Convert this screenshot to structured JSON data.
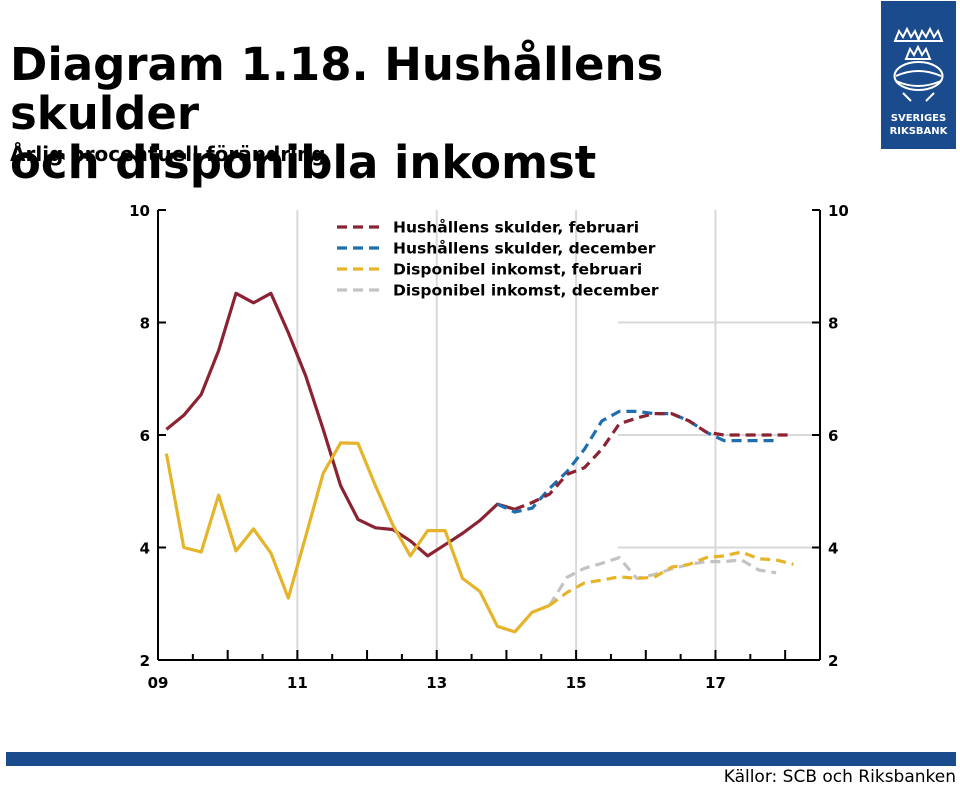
{
  "title_lines": [
    "Diagram 1.18. Hushållens skulder",
    "och disponibla inkomst"
  ],
  "subtitle": "Årlig procentuell förändring",
  "logo": {
    "line1": "SVERIGES",
    "line2": "RIKSBANK",
    "icon": "crown-emblem-icon"
  },
  "sources": "Källor: SCB och Riksbanken",
  "colors": {
    "debt_feb": "#8b2332",
    "debt_dec": "#1f6fb0",
    "income_feb": "#e5b42a",
    "income_dec": "#c3c3c3",
    "grid": "#d9d9d9",
    "brand": "#1a4b8c"
  },
  "chart_data": {
    "type": "line",
    "title": "",
    "xlabel": "",
    "ylabel": "",
    "xlim": [
      2009,
      2018.5
    ],
    "ylim": [
      2,
      10
    ],
    "grid": true,
    "legend_position": "top",
    "y_ticks": [
      "2",
      "4",
      "6",
      "8",
      "10"
    ],
    "x_ticks": [
      {
        "value": 2009,
        "label": "09"
      },
      {
        "value": 2011,
        "label": "11"
      },
      {
        "value": 2013,
        "label": "13"
      },
      {
        "value": 2015,
        "label": "15"
      },
      {
        "value": 2017,
        "label": "17"
      }
    ],
    "legend": [
      {
        "label": "Hushållens skulder, februari",
        "series": "debt_feb"
      },
      {
        "label": "Hushållens skulder, december",
        "series": "debt_dec"
      },
      {
        "label": "Disponibel inkomst, februari",
        "series": "income_feb"
      },
      {
        "label": "Disponibel inkomst, december",
        "series": "income_dec"
      }
    ],
    "series": [
      {
        "key": "debt_hist",
        "color_key": "debt_feb",
        "dashed": false,
        "points": [
          [
            2009.12,
            6.1
          ],
          [
            2009.37,
            6.35
          ],
          [
            2009.62,
            6.72
          ],
          [
            2009.87,
            7.5
          ],
          [
            2010.12,
            8.52
          ],
          [
            2010.37,
            8.35
          ],
          [
            2010.62,
            8.52
          ],
          [
            2010.87,
            7.82
          ],
          [
            2011.12,
            7.05
          ],
          [
            2011.37,
            6.1
          ],
          [
            2011.62,
            5.1
          ],
          [
            2011.87,
            4.5
          ],
          [
            2012.12,
            4.35
          ],
          [
            2012.37,
            4.32
          ],
          [
            2012.62,
            4.12
          ],
          [
            2012.87,
            3.85
          ],
          [
            2013.12,
            4.05
          ],
          [
            2013.37,
            4.25
          ],
          [
            2013.62,
            4.48
          ],
          [
            2013.87,
            4.77
          ],
          [
            2014.12,
            4.68
          ]
        ]
      },
      {
        "key": "debt_feb",
        "color_key": "debt_feb",
        "dashed": true,
        "points": [
          [
            2014.12,
            4.68
          ],
          [
            2014.37,
            4.8
          ],
          [
            2014.62,
            4.95
          ],
          [
            2014.87,
            5.3
          ],
          [
            2015.12,
            5.42
          ],
          [
            2015.37,
            5.75
          ],
          [
            2015.62,
            6.2
          ],
          [
            2015.87,
            6.3
          ],
          [
            2016.12,
            6.38
          ],
          [
            2016.37,
            6.38
          ],
          [
            2016.62,
            6.25
          ],
          [
            2016.87,
            6.05
          ],
          [
            2017.12,
            6.0
          ],
          [
            2017.37,
            6.0
          ],
          [
            2017.62,
            6.0
          ],
          [
            2017.87,
            6.0
          ],
          [
            2018.12,
            6.0
          ]
        ]
      },
      {
        "key": "debt_dec",
        "color_key": "debt_dec",
        "dashed": true,
        "points": [
          [
            2013.87,
            4.77
          ],
          [
            2014.12,
            4.63
          ],
          [
            2014.37,
            4.7
          ],
          [
            2014.62,
            5.05
          ],
          [
            2014.87,
            5.35
          ],
          [
            2015.12,
            5.75
          ],
          [
            2015.37,
            6.25
          ],
          [
            2015.62,
            6.42
          ],
          [
            2015.87,
            6.42
          ],
          [
            2016.12,
            6.38
          ],
          [
            2016.37,
            6.38
          ],
          [
            2016.62,
            6.25
          ],
          [
            2016.87,
            6.05
          ],
          [
            2017.12,
            5.9
          ],
          [
            2017.37,
            5.9
          ],
          [
            2017.62,
            5.9
          ],
          [
            2017.87,
            5.9
          ]
        ]
      },
      {
        "key": "income_hist",
        "color_key": "income_feb",
        "dashed": false,
        "points": [
          [
            2009.12,
            5.67
          ],
          [
            2009.37,
            4.0
          ],
          [
            2009.62,
            3.92
          ],
          [
            2009.87,
            4.93
          ],
          [
            2010.12,
            3.94
          ],
          [
            2010.37,
            4.33
          ],
          [
            2010.62,
            3.9
          ],
          [
            2010.87,
            3.1
          ],
          [
            2011.12,
            4.2
          ],
          [
            2011.37,
            5.32
          ],
          [
            2011.62,
            5.86
          ],
          [
            2011.87,
            5.85
          ],
          [
            2012.12,
            5.1
          ],
          [
            2012.37,
            4.4
          ],
          [
            2012.62,
            3.85
          ],
          [
            2012.87,
            4.3
          ],
          [
            2013.12,
            4.3
          ],
          [
            2013.37,
            3.45
          ],
          [
            2013.62,
            3.22
          ],
          [
            2013.87,
            2.6
          ],
          [
            2014.12,
            2.5
          ],
          [
            2014.37,
            2.85
          ],
          [
            2014.62,
            2.97
          ]
        ]
      },
      {
        "key": "income_dec",
        "color_key": "income_dec",
        "dashed": true,
        "points": [
          [
            2014.62,
            2.97
          ],
          [
            2014.87,
            3.47
          ],
          [
            2015.12,
            3.63
          ],
          [
            2015.37,
            3.72
          ],
          [
            2015.62,
            3.82
          ],
          [
            2015.87,
            3.45
          ],
          [
            2016.12,
            3.52
          ],
          [
            2016.37,
            3.62
          ],
          [
            2016.62,
            3.7
          ],
          [
            2016.87,
            3.75
          ],
          [
            2017.12,
            3.75
          ],
          [
            2017.37,
            3.78
          ],
          [
            2017.62,
            3.6
          ],
          [
            2017.87,
            3.55
          ]
        ]
      },
      {
        "key": "income_feb",
        "color_key": "income_feb",
        "dashed": true,
        "points": [
          [
            2014.62,
            2.97
          ],
          [
            2014.87,
            3.2
          ],
          [
            2015.12,
            3.37
          ],
          [
            2015.37,
            3.42
          ],
          [
            2015.62,
            3.48
          ],
          [
            2015.87,
            3.45
          ],
          [
            2016.12,
            3.47
          ],
          [
            2016.37,
            3.65
          ],
          [
            2016.62,
            3.7
          ],
          [
            2016.87,
            3.82
          ],
          [
            2017.12,
            3.85
          ],
          [
            2017.37,
            3.92
          ],
          [
            2017.62,
            3.8
          ],
          [
            2017.87,
            3.78
          ],
          [
            2018.12,
            3.7
          ]
        ]
      }
    ]
  }
}
